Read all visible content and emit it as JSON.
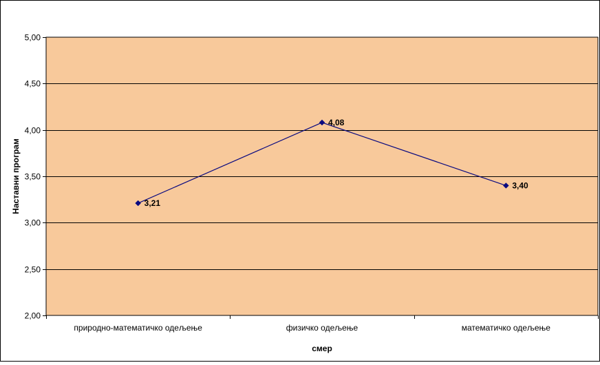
{
  "chart_data": {
    "type": "line",
    "title": "",
    "xlabel": "смер",
    "ylabel": "Наставни програм",
    "categories": [
      "природно-математичко одељење",
      "физичко одељење",
      "математичко одељење"
    ],
    "values": [
      3.21,
      4.08,
      3.4
    ],
    "data_labels": [
      "3,21",
      "4,08",
      "3,40"
    ],
    "ylim": [
      2.0,
      5.0
    ],
    "yticks": [
      2.0,
      2.5,
      3.0,
      3.5,
      4.0,
      4.5,
      5.0
    ],
    "ytick_labels": [
      "2,00",
      "2,50",
      "3,00",
      "3,50",
      "4,00",
      "4,50",
      "5,00"
    ],
    "grid": true,
    "legend": "none",
    "colors": {
      "plot_background": "#F8C99B",
      "line": "#0A0A80",
      "marker": "#0A0A80",
      "grid": "#000000",
      "border": "#000000"
    }
  }
}
